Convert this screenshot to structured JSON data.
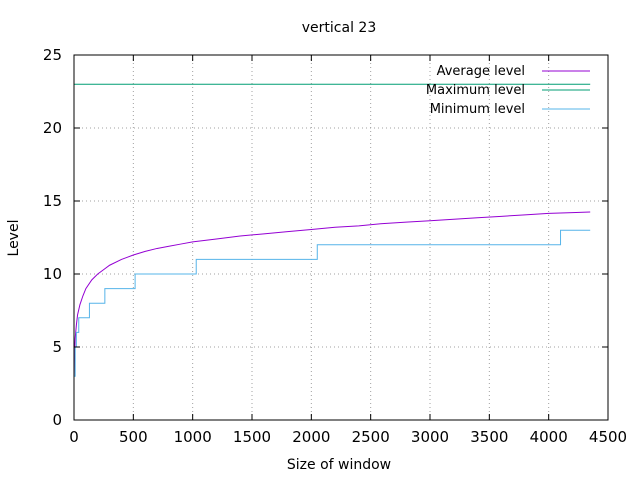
{
  "chart_data": {
    "type": "line",
    "title": "vertical 23",
    "xlabel": "Size of window",
    "ylabel": "Level",
    "xlim": [
      0,
      4500
    ],
    "ylim": [
      0,
      25
    ],
    "xticks": [
      0,
      500,
      1000,
      1500,
      2000,
      2500,
      3000,
      3500,
      4000,
      4500
    ],
    "yticks": [
      0,
      5,
      10,
      15,
      20,
      25
    ],
    "grid": true,
    "legend_position": "top-right",
    "series": [
      {
        "name": "Average level",
        "color": "#9400d3",
        "step": false,
        "points": [
          [
            1,
            3.0
          ],
          [
            5,
            4.5
          ],
          [
            10,
            5.6
          ],
          [
            20,
            6.5
          ],
          [
            30,
            7.2
          ],
          [
            50,
            7.9
          ],
          [
            75,
            8.5
          ],
          [
            100,
            9.0
          ],
          [
            150,
            9.6
          ],
          [
            200,
            10.0
          ],
          [
            250,
            10.3
          ],
          [
            300,
            10.6
          ],
          [
            400,
            11.0
          ],
          [
            500,
            11.3
          ],
          [
            600,
            11.55
          ],
          [
            700,
            11.75
          ],
          [
            800,
            11.9
          ],
          [
            900,
            12.05
          ],
          [
            1000,
            12.2
          ],
          [
            1200,
            12.4
          ],
          [
            1400,
            12.6
          ],
          [
            1600,
            12.75
          ],
          [
            1800,
            12.9
          ],
          [
            2000,
            13.05
          ],
          [
            2200,
            13.2
          ],
          [
            2400,
            13.3
          ],
          [
            2600,
            13.45
          ],
          [
            2800,
            13.55
          ],
          [
            3000,
            13.65
          ],
          [
            3200,
            13.75
          ],
          [
            3400,
            13.85
          ],
          [
            3600,
            13.95
          ],
          [
            3800,
            14.05
          ],
          [
            4000,
            14.15
          ],
          [
            4200,
            14.2
          ],
          [
            4350,
            14.25
          ]
        ]
      },
      {
        "name": "Maximum level",
        "color": "#009e73",
        "step": false,
        "points": [
          [
            0,
            23
          ],
          [
            4350,
            23
          ]
        ]
      },
      {
        "name": "Minimum level",
        "color": "#56b4e9",
        "step": true,
        "points": [
          [
            0,
            3
          ],
          [
            10,
            5
          ],
          [
            20,
            6
          ],
          [
            40,
            7
          ],
          [
            130,
            8
          ],
          [
            260,
            9
          ],
          [
            515,
            10
          ],
          [
            1030,
            11
          ],
          [
            2050,
            12
          ],
          [
            4100,
            13
          ],
          [
            4350,
            13
          ]
        ]
      }
    ]
  }
}
